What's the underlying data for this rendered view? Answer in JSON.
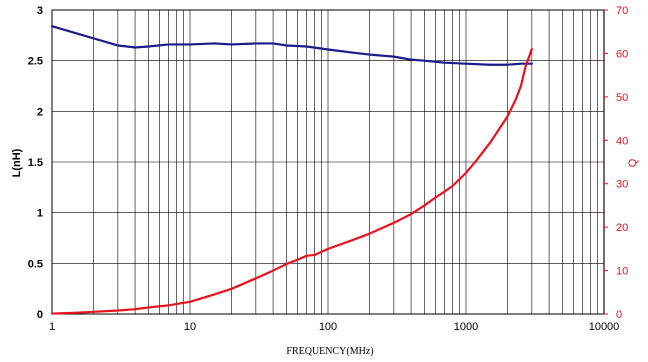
{
  "chart_data": {
    "type": "line",
    "xlabel": "FREQUENCY(MHz)",
    "ylabel_left": "L(nH)",
    "ylabel_right": "Q",
    "x_scale": "log",
    "xlim": [
      1,
      10000
    ],
    "ylim_left": [
      0,
      3
    ],
    "ylim_right": [
      0,
      70
    ],
    "grid": true,
    "x_ticks": [
      "1",
      "10",
      "100",
      "1000",
      "10000"
    ],
    "y_left_ticks": [
      "0",
      "0.5",
      "1",
      "1.5",
      "2",
      "2.5",
      "3"
    ],
    "y_right_ticks": [
      "0",
      "10",
      "20",
      "30",
      "40",
      "50",
      "60",
      "70"
    ],
    "colors": {
      "L": "#1a1a8c",
      "Q": "#e8131c",
      "grid": "#000000",
      "right_axis": "#e8131c"
    },
    "series": [
      {
        "axis": "left",
        "x": [
          1,
          1.5,
          2,
          3,
          4,
          5,
          7,
          10,
          15,
          20,
          30,
          40,
          50,
          70,
          100,
          150,
          200,
          300,
          400,
          500,
          700,
          1000,
          1500,
          2000,
          2500,
          3000
        ],
        "y": [
          2.84,
          2.77,
          2.72,
          2.65,
          2.63,
          2.64,
          2.66,
          2.66,
          2.67,
          2.66,
          2.67,
          2.67,
          2.65,
          2.64,
          2.61,
          2.58,
          2.56,
          2.54,
          2.51,
          2.5,
          2.48,
          2.47,
          2.46,
          2.46,
          2.47,
          2.47
        ]
      },
      {
        "axis": "right",
        "x": [
          1,
          1.5,
          2,
          3,
          4,
          5,
          7,
          10,
          15,
          20,
          30,
          40,
          50,
          60,
          70,
          80,
          100,
          150,
          200,
          300,
          400,
          500,
          600,
          700,
          800,
          1000,
          1200,
          1500,
          2000,
          2300,
          2500,
          2700,
          3000
        ],
        "y": [
          0.1,
          0.3,
          0.5,
          0.8,
          1.1,
          1.5,
          2.0,
          2.8,
          4.5,
          5.8,
          8.2,
          10.0,
          11.5,
          12.5,
          13.4,
          13.6,
          15.0,
          17.0,
          18.5,
          21.0,
          23.0,
          25.0,
          26.8,
          28.2,
          29.5,
          32.5,
          35.5,
          39.5,
          45.5,
          49.5,
          52.5,
          57.0,
          61.0
        ]
      }
    ]
  }
}
